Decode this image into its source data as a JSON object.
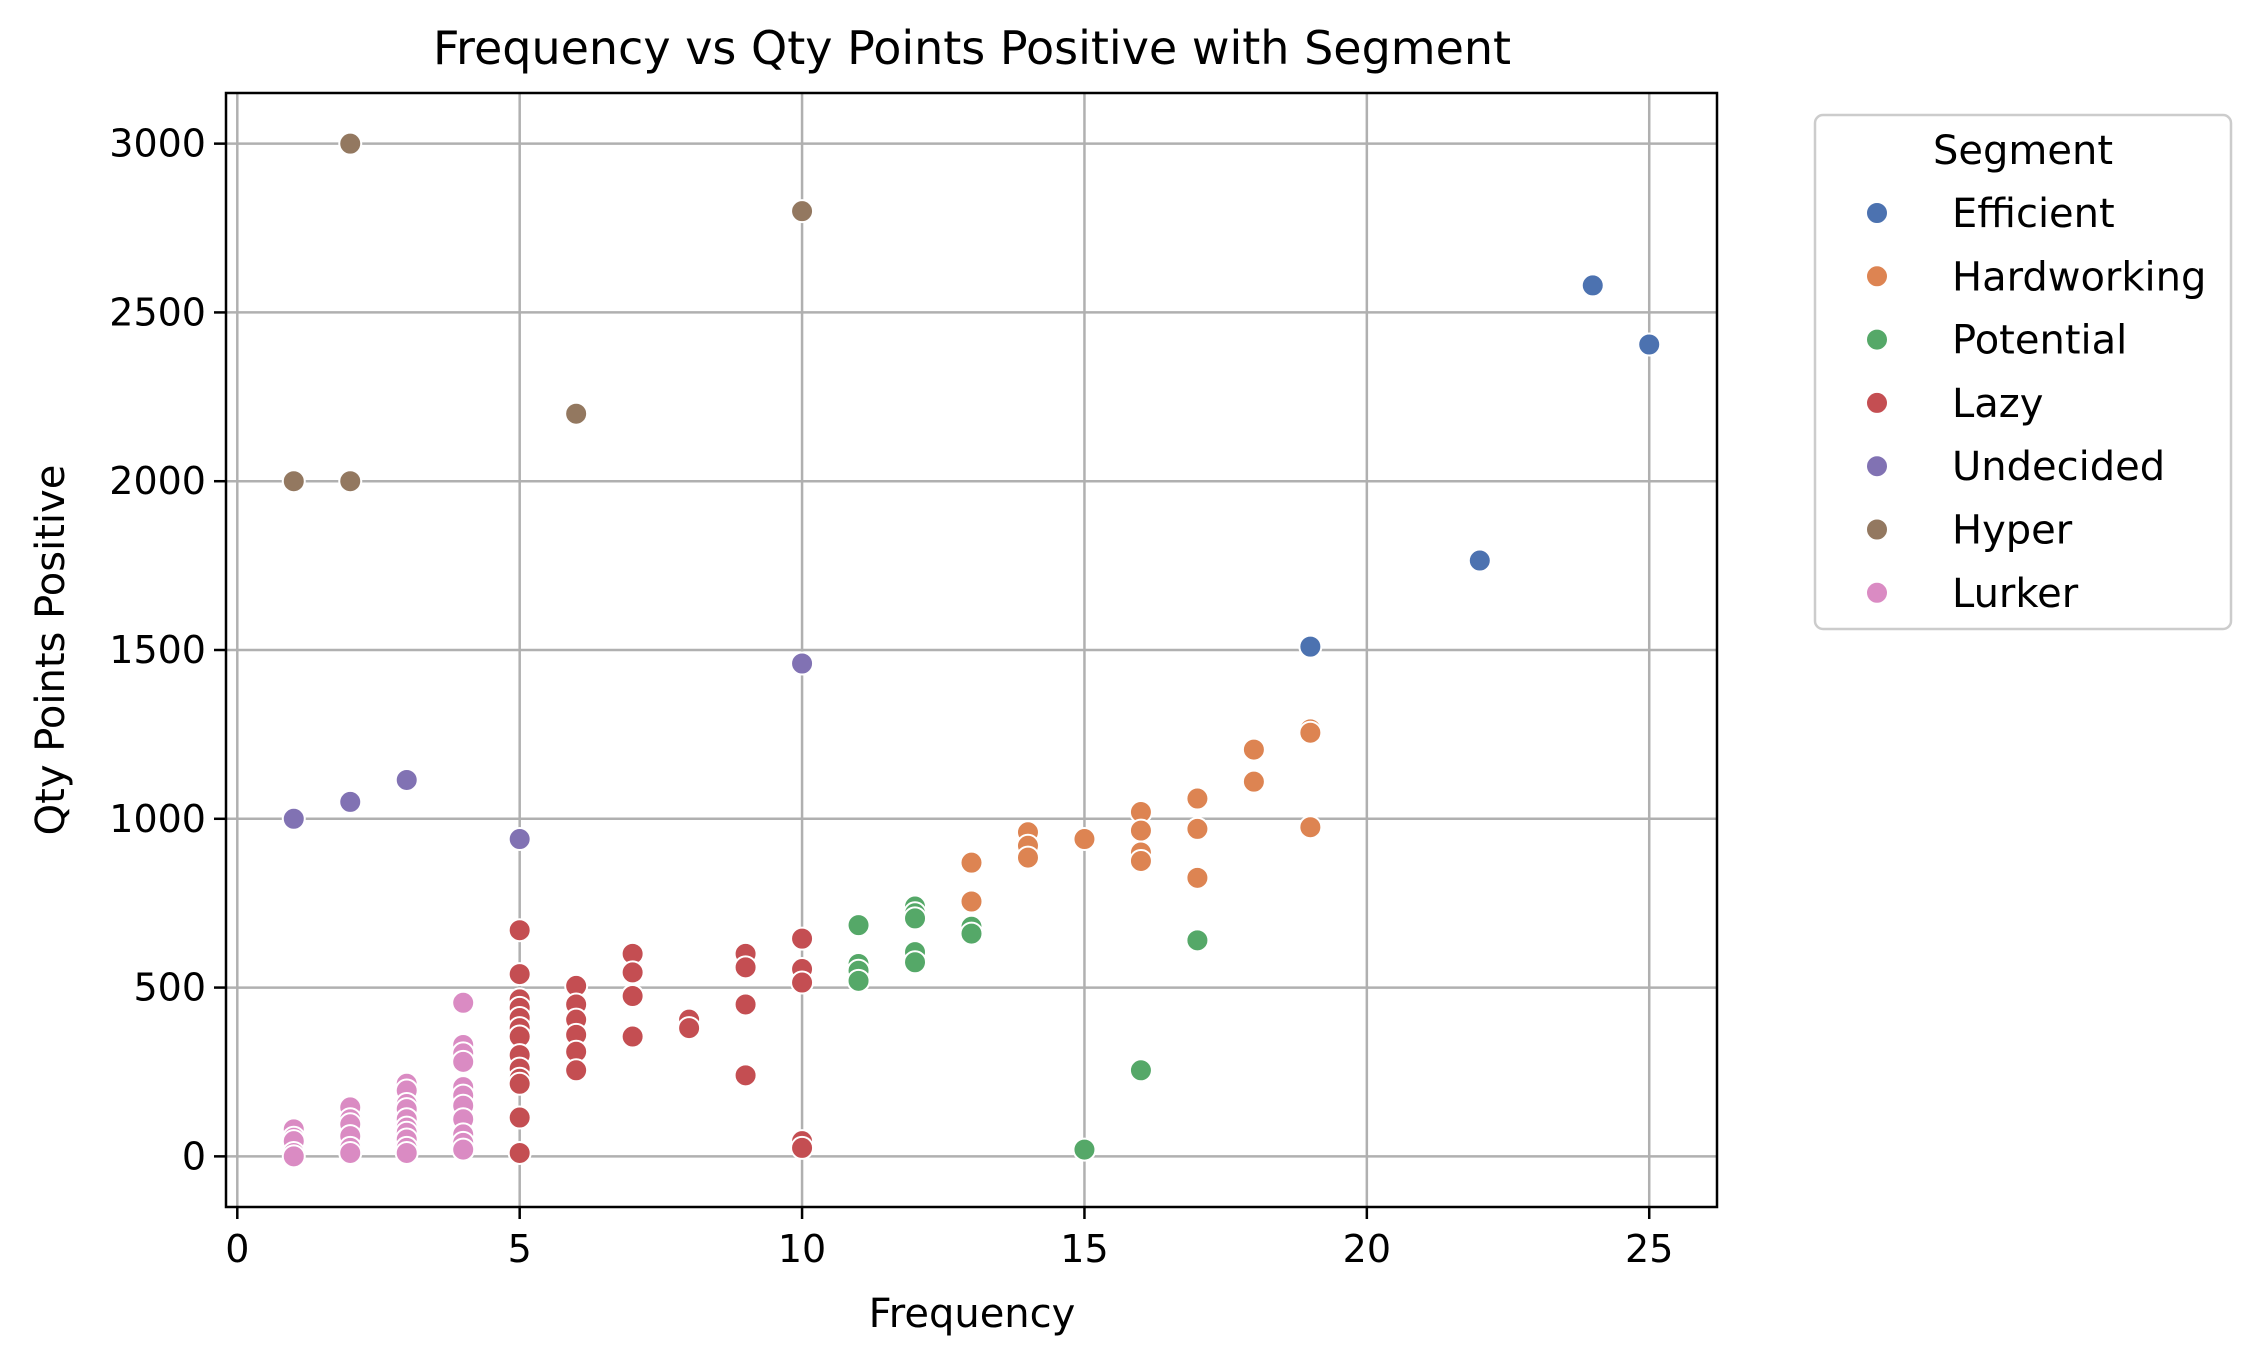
{
  "chart_data": {
    "type": "scatter",
    "title": "Frequency vs Qty Points Positive with Segment",
    "xlabel": "Frequency",
    "ylabel": "Qty Points Positive",
    "xlim": [
      -0.2,
      26.2
    ],
    "ylim": [
      -150,
      3150
    ],
    "xticks": [
      0,
      5,
      10,
      15,
      20,
      25
    ],
    "yticks": [
      0,
      500,
      1000,
      1500,
      2000,
      2500,
      3000
    ],
    "grid": true,
    "legend": {
      "title": "Segment",
      "placement": "outside-right-top"
    },
    "series": [
      {
        "name": "Efficient",
        "color": "#4c72b0",
        "points": [
          [
            19,
            1510
          ],
          [
            22,
            1765
          ],
          [
            24,
            2580
          ],
          [
            25,
            2405
          ]
        ]
      },
      {
        "name": "Hardworking",
        "color": "#dd8452",
        "points": [
          [
            13,
            870
          ],
          [
            13,
            755
          ],
          [
            14,
            960
          ],
          [
            14,
            920
          ],
          [
            14,
            885
          ],
          [
            15,
            940
          ],
          [
            16,
            1020
          ],
          [
            16,
            965
          ],
          [
            16,
            900
          ],
          [
            16,
            875
          ],
          [
            17,
            1060
          ],
          [
            17,
            970
          ],
          [
            17,
            825
          ],
          [
            18,
            1205
          ],
          [
            18,
            1110
          ],
          [
            19,
            1265
          ],
          [
            19,
            1255
          ],
          [
            19,
            975
          ]
        ]
      },
      {
        "name": "Potential",
        "color": "#55a868",
        "points": [
          [
            11,
            685
          ],
          [
            11,
            570
          ],
          [
            11,
            550
          ],
          [
            11,
            520
          ],
          [
            12,
            740
          ],
          [
            12,
            720
          ],
          [
            12,
            705
          ],
          [
            12,
            605
          ],
          [
            12,
            575
          ],
          [
            13,
            680
          ],
          [
            13,
            660
          ],
          [
            15,
            20
          ],
          [
            16,
            255
          ],
          [
            17,
            640
          ]
        ]
      },
      {
        "name": "Lazy",
        "color": "#c44e52",
        "points": [
          [
            5,
            670
          ],
          [
            5,
            540
          ],
          [
            5,
            465
          ],
          [
            5,
            440
          ],
          [
            5,
            410
          ],
          [
            5,
            380
          ],
          [
            5,
            355
          ],
          [
            5,
            300
          ],
          [
            5,
            260
          ],
          [
            5,
            230
          ],
          [
            5,
            215
          ],
          [
            5,
            115
          ],
          [
            5,
            10
          ],
          [
            6,
            505
          ],
          [
            6,
            450
          ],
          [
            6,
            405
          ],
          [
            6,
            360
          ],
          [
            6,
            310
          ],
          [
            6,
            255
          ],
          [
            7,
            600
          ],
          [
            7,
            545
          ],
          [
            7,
            475
          ],
          [
            7,
            355
          ],
          [
            8,
            405
          ],
          [
            8,
            380
          ],
          [
            9,
            600
          ],
          [
            9,
            560
          ],
          [
            9,
            450
          ],
          [
            9,
            240
          ],
          [
            10,
            645
          ],
          [
            10,
            555
          ],
          [
            10,
            515
          ],
          [
            10,
            45
          ],
          [
            10,
            25
          ]
        ]
      },
      {
        "name": "Undecided",
        "color": "#8172b3",
        "points": [
          [
            1,
            1000
          ],
          [
            2,
            1050
          ],
          [
            3,
            1115
          ],
          [
            5,
            940
          ],
          [
            10,
            1460
          ]
        ]
      },
      {
        "name": "Hyper",
        "color": "#937860",
        "points": [
          [
            1,
            2000
          ],
          [
            2,
            3000
          ],
          [
            2,
            2000
          ],
          [
            6,
            2200
          ],
          [
            10,
            2800
          ]
        ]
      },
      {
        "name": "Lurker",
        "color": "#da8bc3",
        "points": [
          [
            1,
            80
          ],
          [
            1,
            55
          ],
          [
            1,
            45
          ],
          [
            1,
            10
          ],
          [
            1,
            0
          ],
          [
            2,
            145
          ],
          [
            2,
            110
          ],
          [
            2,
            95
          ],
          [
            2,
            60
          ],
          [
            2,
            25
          ],
          [
            2,
            10
          ],
          [
            3,
            215
          ],
          [
            3,
            195
          ],
          [
            3,
            155
          ],
          [
            3,
            140
          ],
          [
            3,
            110
          ],
          [
            3,
            85
          ],
          [
            3,
            70
          ],
          [
            3,
            50
          ],
          [
            3,
            25
          ],
          [
            3,
            10
          ],
          [
            4,
            455
          ],
          [
            4,
            330
          ],
          [
            4,
            305
          ],
          [
            4,
            280
          ],
          [
            4,
            205
          ],
          [
            4,
            180
          ],
          [
            4,
            150
          ],
          [
            4,
            110
          ],
          [
            4,
            65
          ],
          [
            4,
            40
          ],
          [
            4,
            20
          ]
        ]
      }
    ]
  }
}
